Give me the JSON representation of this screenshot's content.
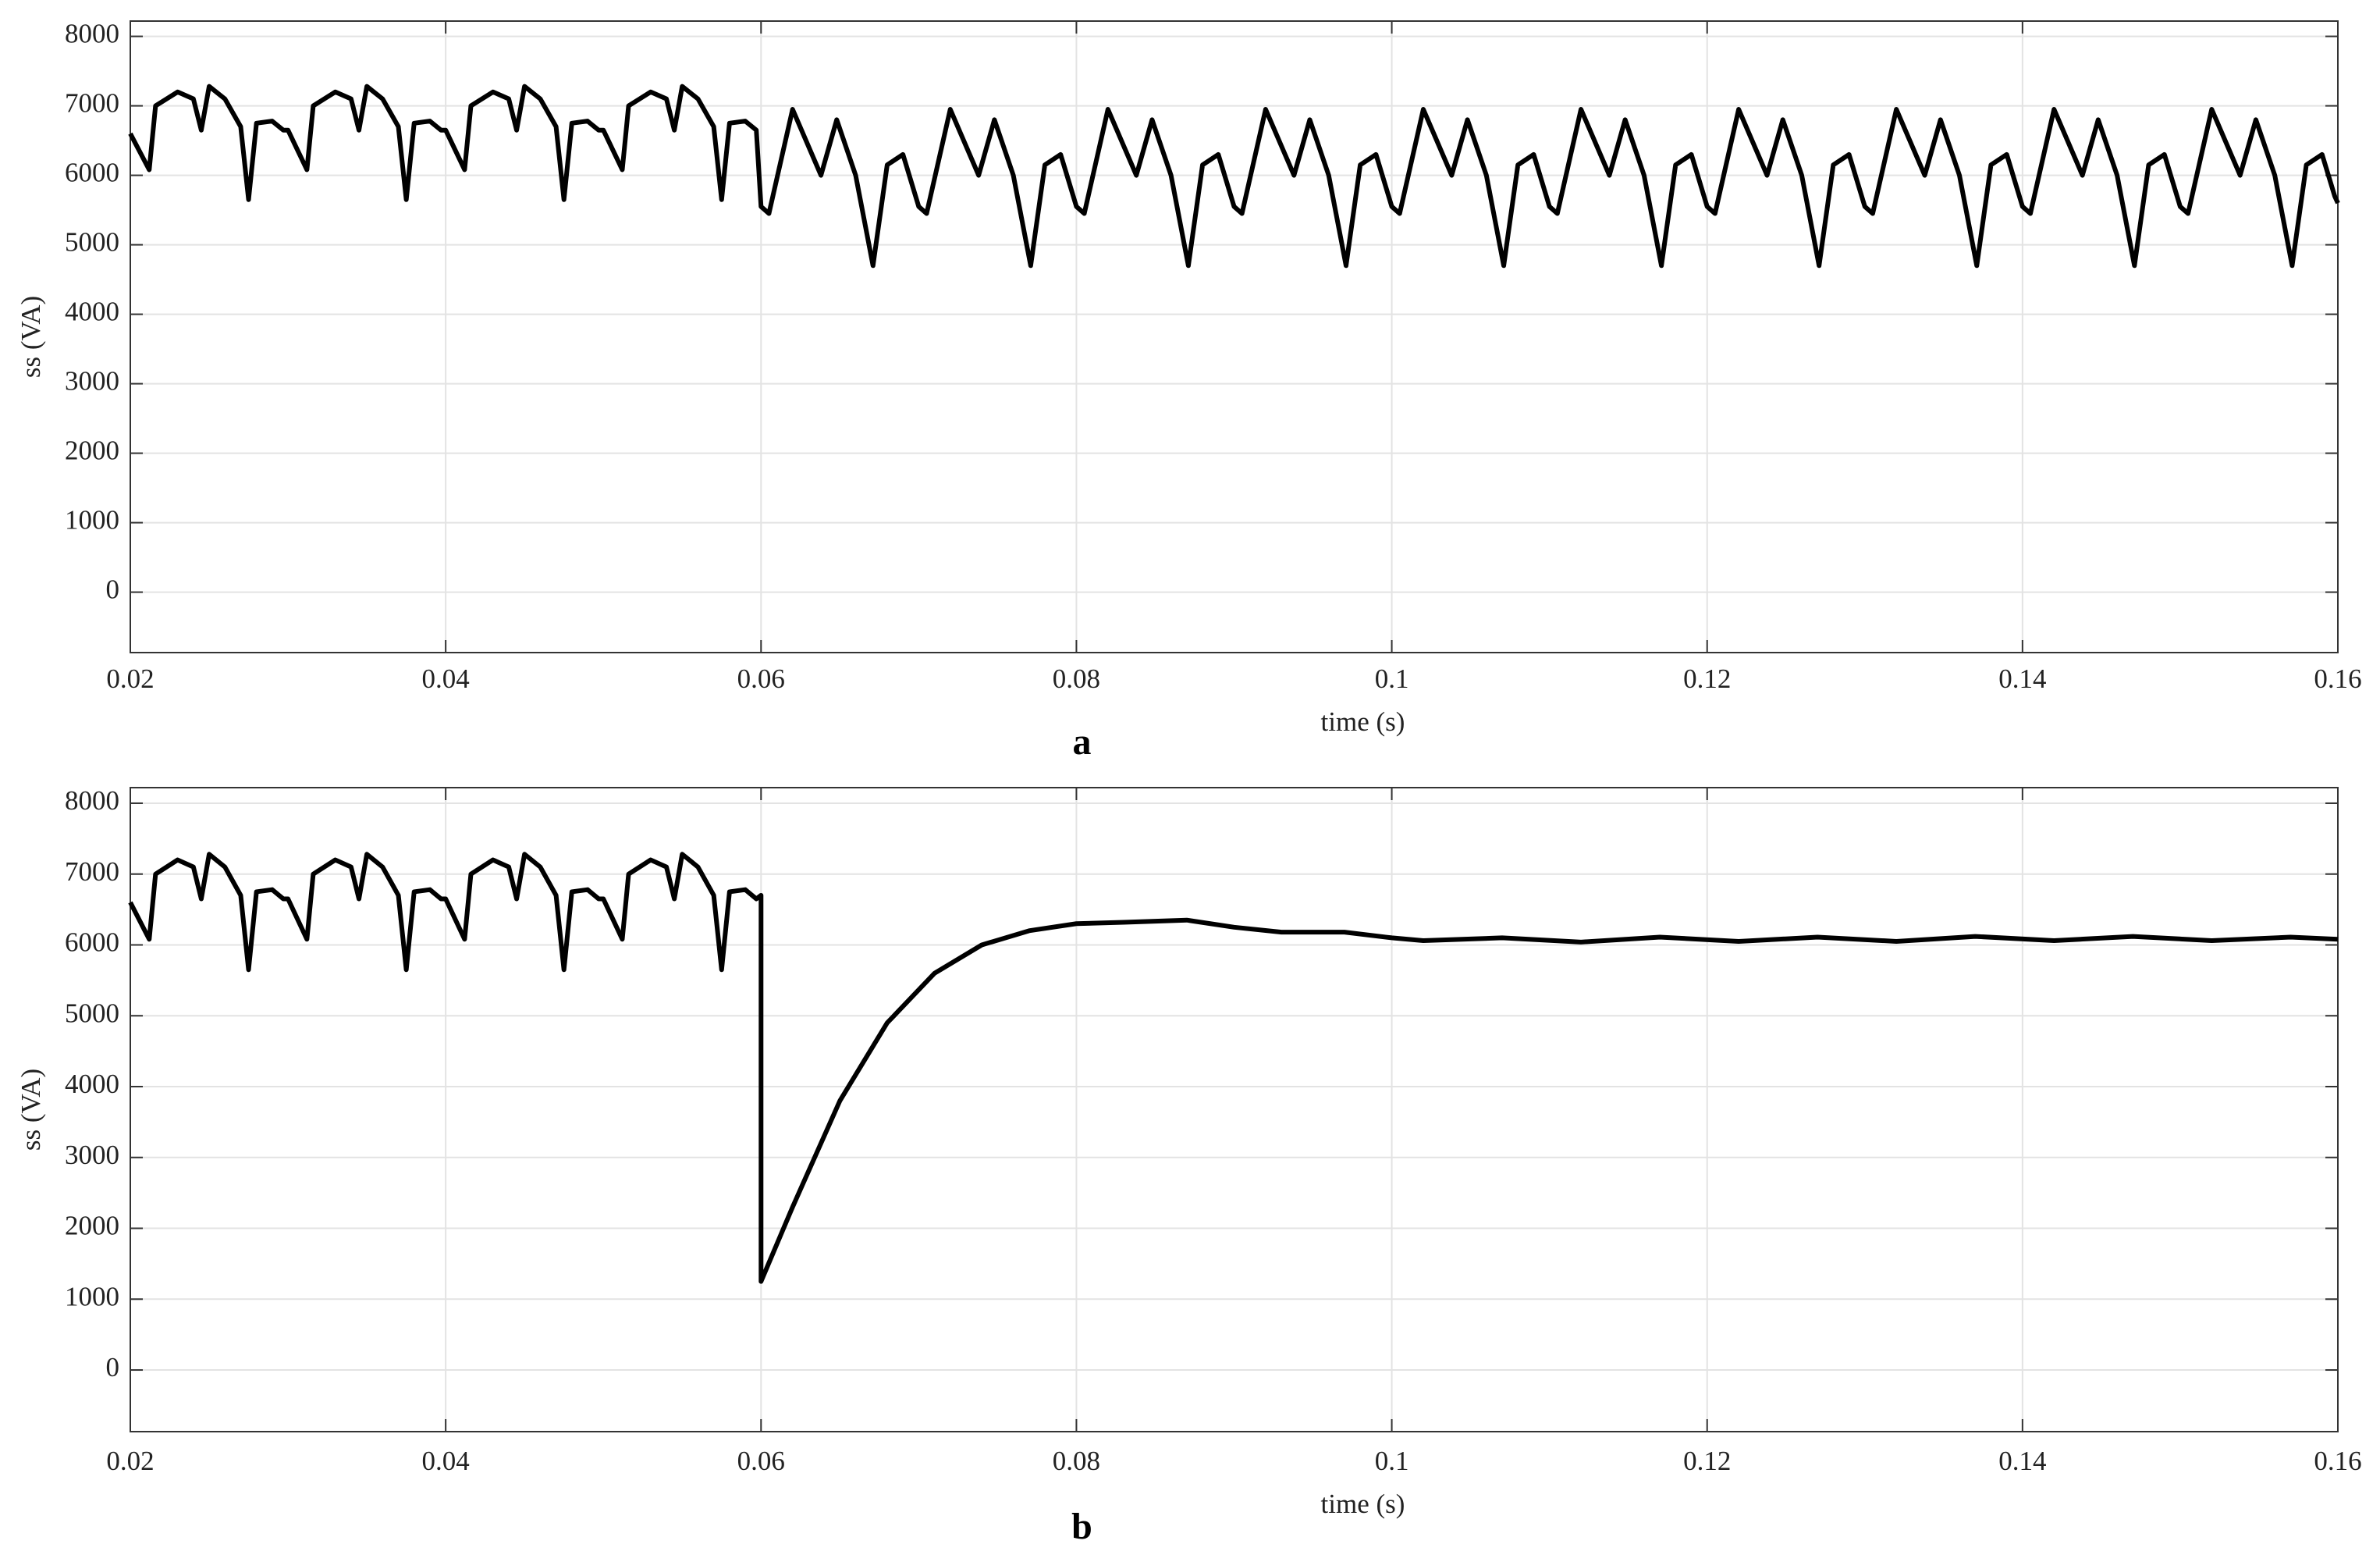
{
  "chart_data": [
    {
      "type": "line",
      "label": "a",
      "x_label": "time (s)",
      "y_label": "ss (VA)",
      "color": "#000000",
      "grid": true,
      "xlim": [
        0.02,
        0.16
      ],
      "ylim": [
        -870,
        8220
      ],
      "xticks": [
        0.02,
        0.04,
        0.06,
        0.08,
        0.1,
        0.12,
        0.14,
        0.16
      ],
      "yticks": [
        0,
        1000,
        2000,
        3000,
        4000,
        5000,
        6000,
        7000,
        8000
      ],
      "x": [
        0.02,
        0.0212,
        0.0216,
        0.023,
        0.024,
        0.0245,
        0.025,
        0.026,
        0.027,
        0.0275,
        0.028,
        0.029,
        0.0297,
        0.03,
        0.0312,
        0.0316,
        0.033,
        0.034,
        0.0345,
        0.035,
        0.036,
        0.037,
        0.0375,
        0.038,
        0.039,
        0.0397,
        0.04,
        0.0412,
        0.0416,
        0.043,
        0.044,
        0.0445,
        0.045,
        0.046,
        0.047,
        0.0475,
        0.048,
        0.049,
        0.0497,
        0.05,
        0.0512,
        0.0516,
        0.053,
        0.054,
        0.0545,
        0.055,
        0.056,
        0.057,
        0.0575,
        0.058,
        0.059,
        0.0597,
        0.06,
        0.0605,
        0.062,
        0.0638,
        0.0648,
        0.066,
        0.0671,
        0.068,
        0.069,
        0.0698,
        0.07,
        0.0705,
        0.072,
        0.0738,
        0.0748,
        0.076,
        0.0771,
        0.078,
        0.079,
        0.0798,
        0.08,
        0.0805,
        0.082,
        0.0838,
        0.0848,
        0.086,
        0.0871,
        0.088,
        0.089,
        0.0898,
        0.09,
        0.0905,
        0.092,
        0.0938,
        0.0948,
        0.096,
        0.0971,
        0.098,
        0.099,
        0.0998,
        0.1,
        0.1005,
        0.102,
        0.1038,
        0.1048,
        0.106,
        0.1071,
        0.108,
        0.109,
        0.1098,
        0.11,
        0.1105,
        0.112,
        0.1138,
        0.1148,
        0.116,
        0.1171,
        0.118,
        0.119,
        0.1198,
        0.12,
        0.1205,
        0.122,
        0.1238,
        0.1248,
        0.126,
        0.1271,
        0.128,
        0.129,
        0.1298,
        0.13,
        0.1305,
        0.132,
        0.1338,
        0.1348,
        0.136,
        0.1371,
        0.138,
        0.139,
        0.1398,
        0.14,
        0.1405,
        0.142,
        0.1438,
        0.1448,
        0.146,
        0.1471,
        0.148,
        0.149,
        0.1498,
        0.15,
        0.1505,
        0.152,
        0.1538,
        0.1548,
        0.156,
        0.1571,
        0.158,
        0.159,
        0.1598,
        0.16
      ],
      "values": [
        6600,
        6080,
        7000,
        7200,
        7100,
        6650,
        7280,
        7100,
        6700,
        5650,
        6750,
        6780,
        6650,
        6650,
        6080,
        7000,
        7200,
        7100,
        6650,
        7280,
        7100,
        6700,
        5650,
        6750,
        6780,
        6650,
        6650,
        6080,
        7000,
        7200,
        7100,
        6650,
        7280,
        7100,
        6700,
        5650,
        6750,
        6780,
        6650,
        6650,
        6080,
        7000,
        7200,
        7100,
        6650,
        7280,
        7100,
        6700,
        5650,
        6750,
        6780,
        6650,
        5550,
        5450,
        6950,
        6000,
        6800,
        6000,
        4700,
        6150,
        6300,
        5700,
        5550,
        5450,
        6950,
        6000,
        6800,
        6000,
        4700,
        6150,
        6300,
        5700,
        5550,
        5450,
        6950,
        6000,
        6800,
        6000,
        4700,
        6150,
        6300,
        5700,
        5550,
        5450,
        6950,
        6000,
        6800,
        6000,
        4700,
        6150,
        6300,
        5700,
        5550,
        5450,
        6950,
        6000,
        6800,
        6000,
        4700,
        6150,
        6300,
        5700,
        5550,
        5450,
        6950,
        6000,
        6800,
        6000,
        4700,
        6150,
        6300,
        5700,
        5550,
        5450,
        6950,
        6000,
        6800,
        6000,
        4700,
        6150,
        6300,
        5700,
        5550,
        5450,
        6950,
        6000,
        6800,
        6000,
        4700,
        6150,
        6300,
        5700,
        5550,
        5450,
        6950,
        6000,
        6800,
        6000,
        4700,
        6150,
        6300,
        5700,
        5550,
        5450,
        6950,
        6000,
        6800,
        6000,
        4700,
        6150,
        6300,
        5700,
        5600
      ]
    },
    {
      "type": "line",
      "label": "b",
      "x_label": "time (s)",
      "y_label": "ss (VA)",
      "color": "#000000",
      "grid": true,
      "xlim": [
        0.02,
        0.16
      ],
      "ylim": [
        -870,
        8220
      ],
      "xticks": [
        0.02,
        0.04,
        0.06,
        0.08,
        0.1,
        0.12,
        0.14,
        0.16
      ],
      "yticks": [
        0,
        1000,
        2000,
        3000,
        4000,
        5000,
        6000,
        7000,
        8000
      ],
      "x": [
        0.02,
        0.0212,
        0.0216,
        0.023,
        0.024,
        0.0245,
        0.025,
        0.026,
        0.027,
        0.0275,
        0.028,
        0.029,
        0.0297,
        0.03,
        0.0312,
        0.0316,
        0.033,
        0.034,
        0.0345,
        0.035,
        0.036,
        0.037,
        0.0375,
        0.038,
        0.039,
        0.0397,
        0.04,
        0.0412,
        0.0416,
        0.043,
        0.044,
        0.0445,
        0.045,
        0.046,
        0.047,
        0.0475,
        0.048,
        0.049,
        0.0497,
        0.05,
        0.0512,
        0.0516,
        0.053,
        0.054,
        0.0545,
        0.055,
        0.056,
        0.057,
        0.0575,
        0.058,
        0.059,
        0.0597,
        0.06,
        0.06,
        0.062,
        0.065,
        0.068,
        0.071,
        0.074,
        0.077,
        0.08,
        0.083,
        0.087,
        0.09,
        0.093,
        0.097,
        0.1,
        0.102,
        0.107,
        0.112,
        0.117,
        0.122,
        0.127,
        0.132,
        0.137,
        0.142,
        0.147,
        0.152,
        0.157,
        0.16
      ],
      "values": [
        6600,
        6080,
        7000,
        7200,
        7100,
        6650,
        7280,
        7100,
        6700,
        5650,
        6750,
        6780,
        6650,
        6650,
        6080,
        7000,
        7200,
        7100,
        6650,
        7280,
        7100,
        6700,
        5650,
        6750,
        6780,
        6650,
        6650,
        6080,
        7000,
        7200,
        7100,
        6650,
        7280,
        7100,
        6700,
        5650,
        6750,
        6780,
        6650,
        6650,
        6080,
        7000,
        7200,
        7100,
        6650,
        7280,
        7100,
        6700,
        5650,
        6750,
        6780,
        6650,
        6700,
        1250,
        2300,
        3800,
        4900,
        5600,
        6000,
        6200,
        6300,
        6320,
        6350,
        6250,
        6180,
        6180,
        6100,
        6060,
        6100,
        6040,
        6110,
        6050,
        6110,
        6050,
        6120,
        6060,
        6120,
        6060,
        6110,
        6080
      ]
    }
  ]
}
